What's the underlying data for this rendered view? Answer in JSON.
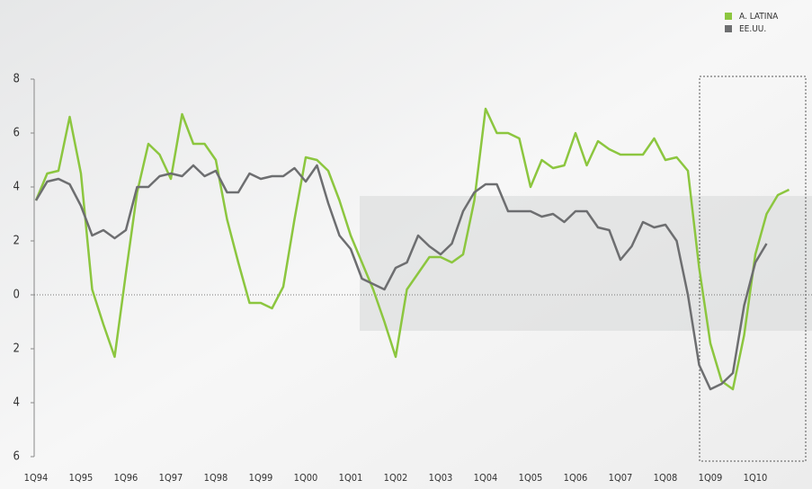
{
  "chart_data": {
    "type": "line",
    "categories": [
      "1Q94",
      null,
      null,
      null,
      "1Q95",
      null,
      null,
      null,
      "1Q96",
      null,
      null,
      null,
      "1Q97",
      null,
      null,
      null,
      "1Q98",
      null,
      null,
      null,
      "1Q99",
      null,
      null,
      null,
      "1Q00",
      null,
      null,
      null,
      "1Q01",
      null,
      null,
      null,
      "1Q02",
      null,
      null,
      null,
      "1Q03",
      null,
      null,
      null,
      "1Q04",
      null,
      null,
      null,
      "1Q05",
      null,
      null,
      null,
      "1Q06",
      null,
      null,
      null,
      "1Q07",
      null,
      null,
      null,
      "1Q08",
      null,
      null,
      null,
      "1Q09",
      null,
      null,
      null,
      "1Q10",
      null,
      null,
      null
    ],
    "series": [
      {
        "name": "A. LATINA",
        "color": "#8cc63f",
        "values": [
          3.5,
          4.5,
          4.6,
          6.6,
          4.5,
          0.2,
          -1.1,
          -2.3,
          0.8,
          3.8,
          5.6,
          5.2,
          4.3,
          6.7,
          5.6,
          5.6,
          5.0,
          2.8,
          1.2,
          -0.3,
          -0.3,
          -0.5,
          0.3,
          2.8,
          5.1,
          5.0,
          4.6,
          3.5,
          2.2,
          1.2,
          0.2,
          -1.0,
          -2.3,
          0.2,
          0.8,
          1.4,
          1.4,
          1.2,
          1.5,
          3.5,
          6.9,
          6.0,
          6.0,
          5.8,
          4.0,
          5.0,
          4.7,
          4.8,
          6.0,
          4.8,
          5.7,
          5.4,
          5.2,
          5.2,
          5.2,
          5.8,
          5.0,
          5.1,
          4.6,
          1.0,
          -1.8,
          -3.2,
          -3.5,
          -1.5,
          1.5,
          3.0,
          3.7,
          3.9
        ]
      },
      {
        "name": "EE.UU.",
        "color": "#6d6e70",
        "values": [
          3.5,
          4.2,
          4.3,
          4.1,
          3.3,
          2.2,
          2.4,
          2.1,
          2.4,
          4.0,
          4.0,
          4.4,
          4.5,
          4.4,
          4.8,
          4.4,
          4.6,
          3.8,
          3.8,
          4.5,
          4.3,
          4.4,
          4.4,
          4.7,
          4.2,
          4.8,
          3.4,
          2.2,
          1.7,
          0.6,
          0.4,
          0.2,
          1.0,
          1.2,
          2.2,
          1.8,
          1.5,
          1.9,
          3.1,
          3.8,
          4.1,
          4.1,
          3.1,
          3.1,
          3.1,
          2.9,
          3.0,
          2.7,
          3.1,
          3.1,
          2.5,
          2.4,
          1.3,
          1.8,
          2.7,
          2.5,
          2.6,
          2.0,
          0.0,
          -2.6,
          -3.5,
          -3.3,
          -2.9,
          -0.4,
          1.2,
          1.9,
          null,
          null
        ]
      }
    ],
    "ylim": [
      -6,
      8
    ],
    "yticks": [
      {
        "value": -6,
        "label": "6"
      },
      {
        "value": -4,
        "label": "4"
      },
      {
        "value": -2,
        "label": "2"
      },
      0,
      2,
      4,
      6,
      8
    ],
    "legend": "upper right"
  }
}
